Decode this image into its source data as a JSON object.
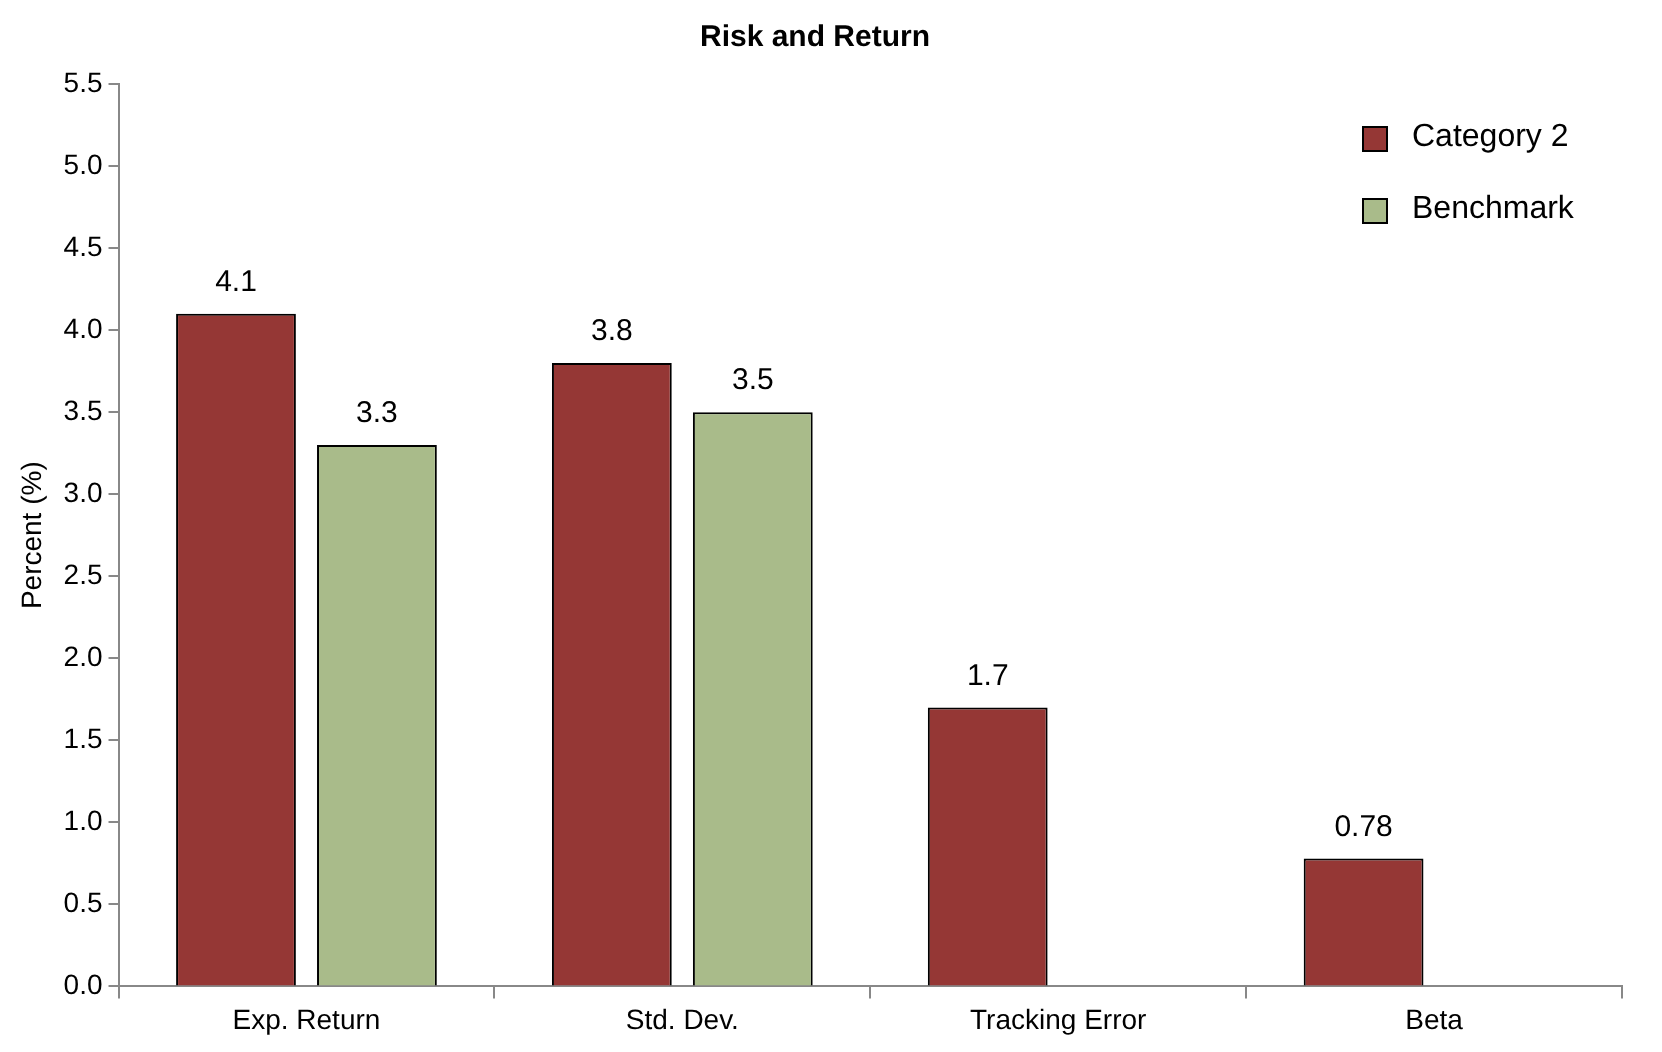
{
  "chart_data": {
    "type": "bar",
    "title": "Risk and Return",
    "ylabel": "Percent (%)",
    "categories": [
      "Exp. Return",
      "Std. Dev.",
      "Tracking Error",
      "Beta"
    ],
    "series": [
      {
        "name": "Category 2",
        "color": "#953735",
        "values": [
          4.1,
          3.8,
          1.7,
          0.78
        ]
      },
      {
        "name": "Benchmark",
        "color": "#a9bb8a",
        "values": [
          3.3,
          3.5,
          null,
          null
        ]
      }
    ],
    "ylim": [
      0,
      5.5
    ],
    "yticks": [
      {
        "value": 0,
        "label": "0.0"
      },
      {
        "value": 0.5,
        "label": "0.5"
      },
      {
        "value": 1,
        "label": "1.0"
      },
      {
        "value": 1.5,
        "label": "1.5"
      },
      {
        "value": 2,
        "label": "2.0"
      },
      {
        "value": 2.5,
        "label": "2.5"
      },
      {
        "value": 3,
        "label": "3.0"
      },
      {
        "value": 3.5,
        "label": "3.5"
      },
      {
        "value": 4,
        "label": "4.0"
      },
      {
        "value": 4.5,
        "label": "4.5"
      },
      {
        "value": 5,
        "label": "5.0"
      },
      {
        "value": 5.5,
        "label": "5.5"
      }
    ],
    "grid": false,
    "legend": "top right",
    "data_labels": true
  }
}
